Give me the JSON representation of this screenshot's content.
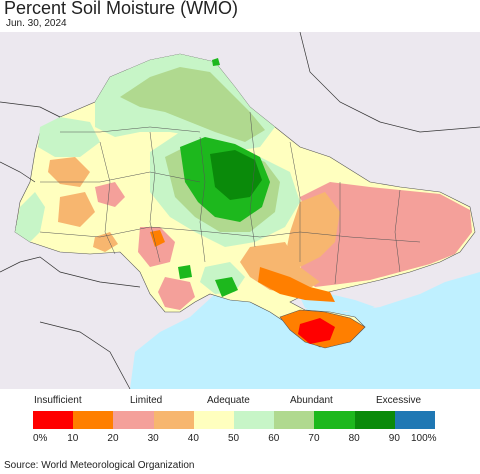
{
  "title": "Percent Soil Moisture (WMO)",
  "date": "Jun. 30, 2024",
  "legend": {
    "categories": [
      "Insufficient",
      "Limited",
      "Adequate",
      "Abundant",
      "Excessive"
    ],
    "ticks": [
      "0%",
      "10",
      "20",
      "30",
      "40",
      "50",
      "60",
      "70",
      "80",
      "90",
      "100%"
    ],
    "colors": [
      "#ff0000",
      "#ff7f00",
      "#f4a09a",
      "#f7b66f",
      "#ffffbf",
      "#c7f5c7",
      "#b0d98f",
      "#1db81d",
      "#0a8a0a",
      "#1f78b4"
    ]
  },
  "source": "Source: World Meteorological Organization"
}
